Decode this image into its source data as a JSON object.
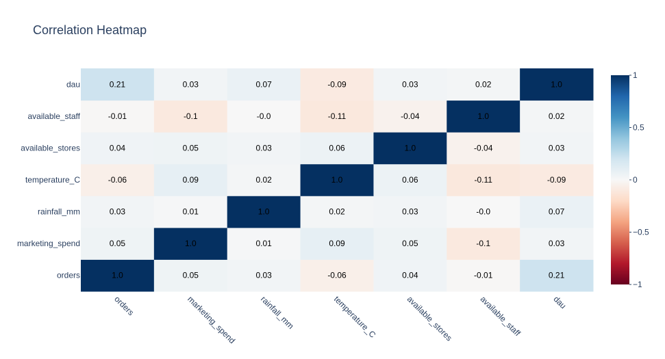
{
  "chart_data": {
    "type": "heatmap",
    "title": "Correlation Heatmap",
    "x_categories": [
      "orders",
      "marketing_spend",
      "rainfall_mm",
      "temperature_C",
      "available_stores",
      "available_staff",
      "dau"
    ],
    "y_categories": [
      "orders",
      "marketing_spend",
      "rainfall_mm",
      "temperature_C",
      "available_stores",
      "available_staff",
      "dau"
    ],
    "z": [
      [
        1.0,
        0.05,
        0.03,
        -0.06,
        0.04,
        -0.01,
        0.21
      ],
      [
        0.05,
        1.0,
        0.01,
        0.09,
        0.05,
        -0.1,
        0.03
      ],
      [
        0.03,
        0.01,
        1.0,
        0.02,
        0.03,
        -0.0,
        0.07
      ],
      [
        -0.06,
        0.09,
        0.02,
        1.0,
        0.06,
        -0.11,
        -0.09
      ],
      [
        0.04,
        0.05,
        0.03,
        0.06,
        1.0,
        -0.04,
        0.03
      ],
      [
        -0.01,
        -0.1,
        -0.0,
        -0.11,
        -0.04,
        1.0,
        0.02
      ],
      [
        0.21,
        0.03,
        0.07,
        -0.09,
        0.03,
        0.02,
        1.0
      ]
    ],
    "z_labels": [
      [
        "1.0",
        "0.05",
        "0.03",
        "-0.06",
        "0.04",
        "-0.01",
        "0.21"
      ],
      [
        "0.05",
        "1.0",
        "0.01",
        "0.09",
        "0.05",
        "-0.1",
        "0.03"
      ],
      [
        "0.03",
        "0.01",
        "1.0",
        "0.02",
        "0.03",
        "-0.0",
        "0.07"
      ],
      [
        "-0.06",
        "0.09",
        "0.02",
        "1.0",
        "0.06",
        "-0.11",
        "-0.09"
      ],
      [
        "0.04",
        "0.05",
        "0.03",
        "0.06",
        "1.0",
        "-0.04",
        "0.03"
      ],
      [
        "-0.01",
        "-0.1",
        "-0.0",
        "-0.11",
        "-0.04",
        "1.0",
        "0.02"
      ],
      [
        "0.21",
        "0.03",
        "0.07",
        "-0.09",
        "0.03",
        "0.02",
        "1.0"
      ]
    ],
    "zlim": [
      -1,
      1
    ],
    "colorscale": "RdBu",
    "colorbar_ticks": [
      {
        "value": 1,
        "label": "1"
      },
      {
        "value": 0.5,
        "label": "0.5"
      },
      {
        "value": 0,
        "label": "0"
      },
      {
        "value": -0.5,
        "label": "−0.5"
      },
      {
        "value": -1,
        "label": "−1"
      }
    ],
    "colorbar_colors": [
      "#67001f",
      "#b2182b",
      "#d6604d",
      "#f4a582",
      "#fddbc7",
      "#f7f7f7",
      "#d1e5f0",
      "#92c5de",
      "#4393c3",
      "#2166ac",
      "#053061"
    ],
    "text_color": "#000000",
    "tick_color": "#2a3f5f"
  }
}
